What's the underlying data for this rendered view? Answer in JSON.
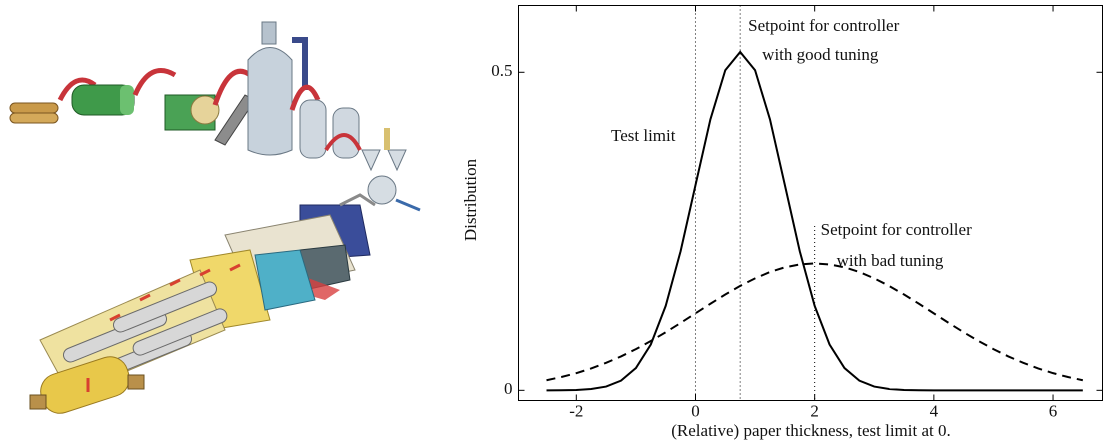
{
  "chart_data": {
    "type": "line",
    "xlabel": "(Relative) paper thickness, test limit at 0.",
    "ylabel": "Distribution",
    "x": [
      -2.5,
      -2.25,
      -2,
      -1.75,
      -1.5,
      -1.25,
      -1,
      -0.75,
      -0.5,
      -0.25,
      0,
      0.25,
      0.5,
      0.75,
      1,
      1.25,
      1.5,
      1.75,
      2,
      2.25,
      2.5,
      2.75,
      3,
      3.25,
      3.5,
      3.75,
      4,
      4.25,
      4.5,
      4.75,
      5,
      5.25,
      5.5,
      5.75,
      6,
      6.25,
      6.5
    ],
    "series": [
      {
        "color": "#000000",
        "dash": false,
        "values": [
          0,
          0.0002,
          0.0006,
          0.0021,
          0.0059,
          0.0152,
          0.035,
          0.072,
          0.1327,
          0.2187,
          0.3226,
          0.4259,
          0.5032,
          0.5319,
          0.5032,
          0.4259,
          0.3226,
          0.2187,
          0.1327,
          0.072,
          0.035,
          0.0152,
          0.0059,
          0.0021,
          0.0006,
          0.0002,
          0,
          0,
          0,
          0,
          0,
          0,
          0,
          0,
          0,
          0,
          0
        ]
      },
      {
        "color": "#000000",
        "dash": true,
        "values": [
          0.0159,
          0.0209,
          0.027,
          0.0344,
          0.0432,
          0.0533,
          0.0648,
          0.0775,
          0.0913,
          0.1059,
          0.121,
          0.1361,
          0.1506,
          0.1641,
          0.176,
          0.186,
          0.1934,
          0.1979,
          0.1995,
          0.1979,
          0.1934,
          0.186,
          0.176,
          0.1641,
          0.1506,
          0.1361,
          0.121,
          0.1059,
          0.0913,
          0.0775,
          0.0648,
          0.0533,
          0.0432,
          0.0344,
          0.027,
          0.0209,
          0.0159
        ]
      }
    ],
    "reference_lines": [
      {
        "x": 0,
        "label": [
          "Test limit"
        ]
      },
      {
        "x": 0.75,
        "label": [
          "Setpoint for controller",
          "with good tuning"
        ]
      },
      {
        "x": 2,
        "label": [
          "Setpoint for controller",
          "with bad tuning"
        ]
      }
    ],
    "xlim": [
      -2.97,
      6.83
    ],
    "ylim": [
      -0.016,
      0.605
    ],
    "xticks": [
      -2,
      0,
      2,
      4,
      6
    ],
    "yticks": [
      0,
      0.5
    ]
  }
}
